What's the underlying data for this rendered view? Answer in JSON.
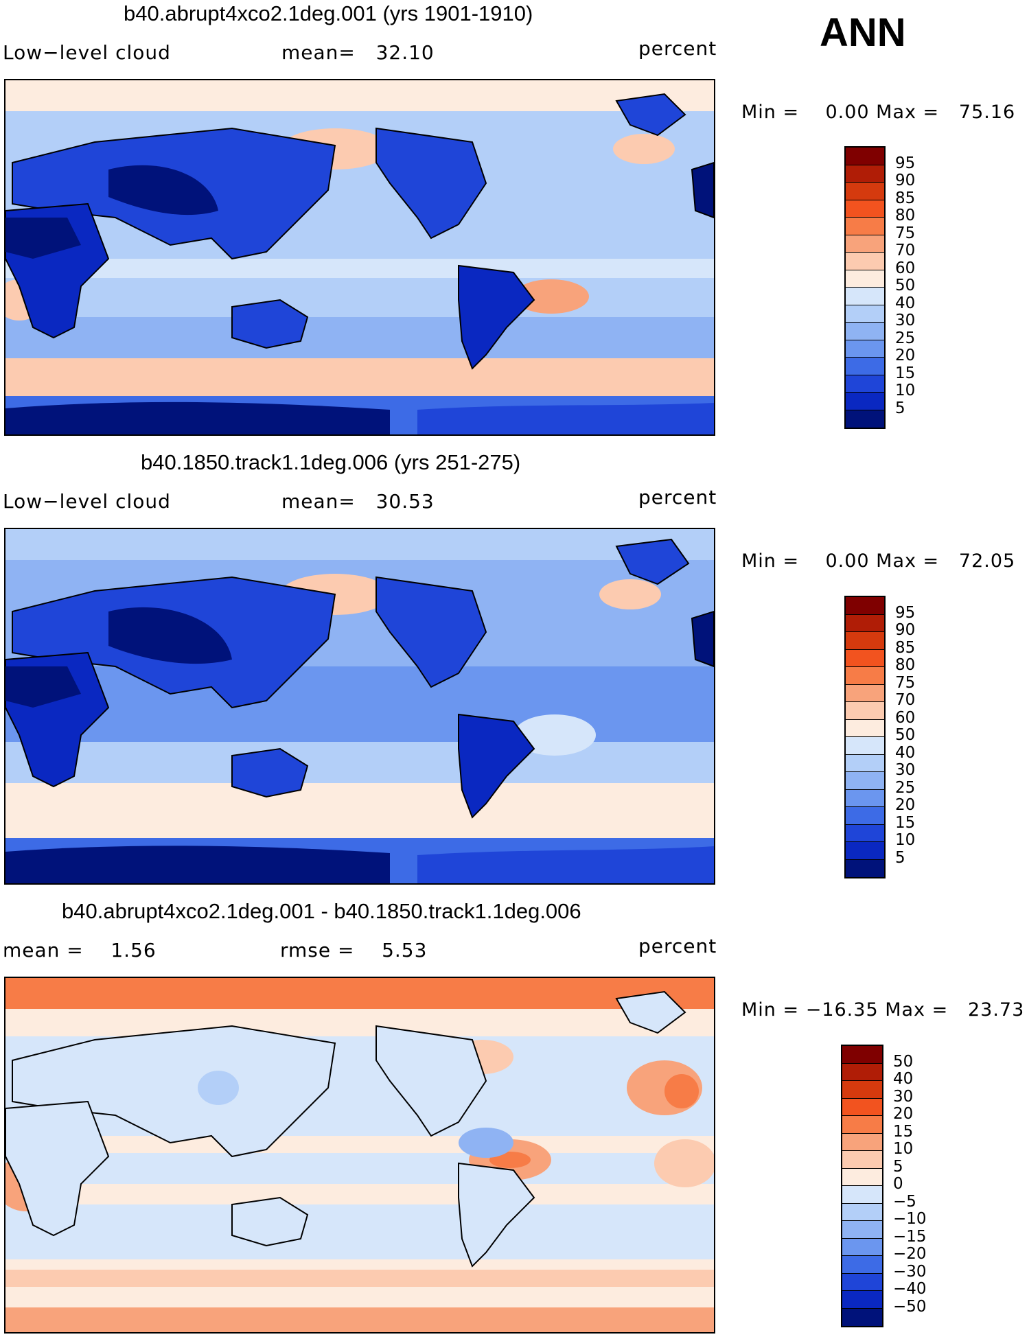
{
  "season": "ANN",
  "panels": [
    {
      "title": "b40.abrupt4xco2.1deg.001 (yrs 1901-1910)",
      "left_label": "Low−level cloud",
      "mid_label": "mean=   32.10",
      "units": "percent",
      "min_max": "Min =    0.00 Max =   75.16",
      "levels": [
        "95",
        "90",
        "85",
        "80",
        "75",
        "70",
        "60",
        "50",
        "40",
        "30",
        "25",
        "20",
        "15",
        "10",
        "5"
      ],
      "colors": [
        "#7f0000",
        "#b01d06",
        "#d53a0e",
        "#f2531f",
        "#f77c47",
        "#f8a37b",
        "#fccbb0",
        "#fdecdf",
        "#d6e6fa",
        "#b3cff8",
        "#8fb3f3",
        "#6b96ef",
        "#3d6be6",
        "#1f45d8",
        "#0a28c1",
        "#00127a"
      ]
    },
    {
      "title": "b40.1850.track1.1deg.006 (yrs 251-275)",
      "left_label": "Low−level cloud",
      "mid_label": "mean=   30.53",
      "units": "percent",
      "min_max": "Min =    0.00 Max =   72.05",
      "levels": [
        "95",
        "90",
        "85",
        "80",
        "75",
        "70",
        "60",
        "50",
        "40",
        "30",
        "25",
        "20",
        "15",
        "10",
        "5"
      ],
      "colors": [
        "#7f0000",
        "#b01d06",
        "#d53a0e",
        "#f2531f",
        "#f77c47",
        "#f8a37b",
        "#fccbb0",
        "#fdecdf",
        "#d6e6fa",
        "#b3cff8",
        "#8fb3f3",
        "#6b96ef",
        "#3d6be6",
        "#1f45d8",
        "#0a28c1",
        "#00127a"
      ]
    },
    {
      "title": "b40.abrupt4xco2.1deg.001 - b40.1850.track1.1deg.006",
      "left_label": "mean =    1.56",
      "mid_label": "rmse =    5.53",
      "units": "percent",
      "min_max": "Min = −16.35 Max =   23.73",
      "levels": [
        "50",
        "40",
        "30",
        "20",
        "15",
        "10",
        "5",
        "0",
        "−5",
        "−10",
        "−15",
        "−20",
        "−30",
        "−40",
        "−50"
      ],
      "colors": [
        "#7f0000",
        "#b01d06",
        "#d53a0e",
        "#f2531f",
        "#f77c47",
        "#f8a37b",
        "#fccbb0",
        "#fdecdf",
        "#d6e6fa",
        "#b3cff8",
        "#8fb3f3",
        "#6b96ef",
        "#3d6be6",
        "#1f45d8",
        "#0a28c1",
        "#00127a"
      ]
    }
  ]
}
